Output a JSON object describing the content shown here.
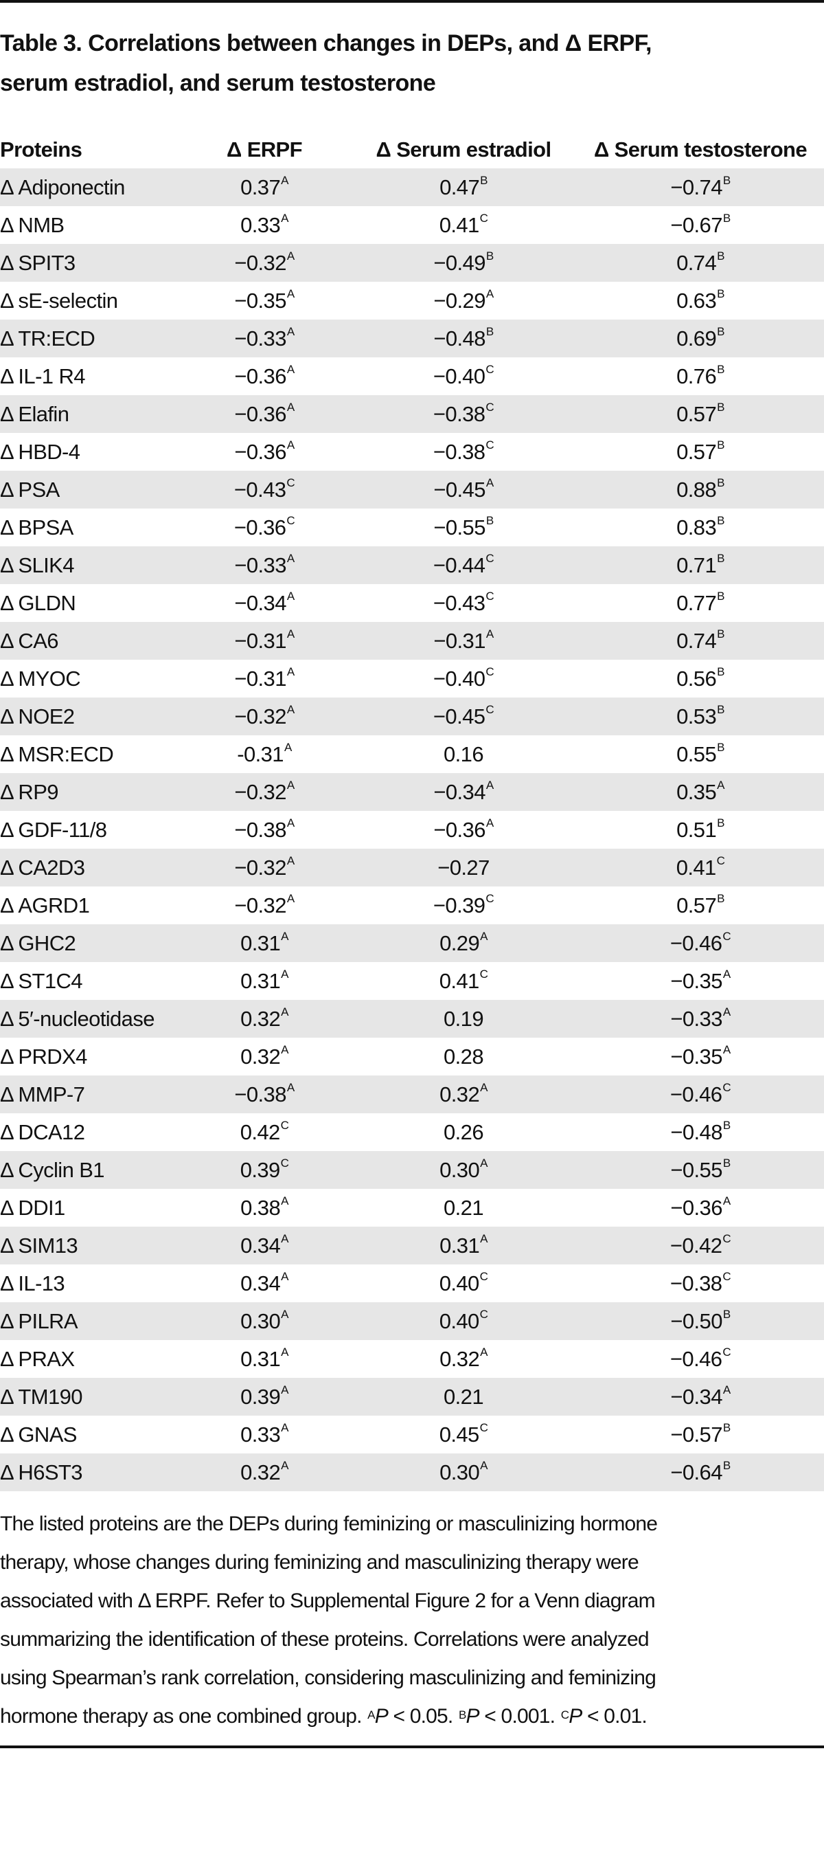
{
  "title": {
    "line1": "Table 3. Correlations between changes in DEPs, and Δ ERPF,",
    "line2": "serum estradiol, and serum testosterone"
  },
  "table": {
    "headers": [
      "Proteins",
      "Δ ERPF",
      "Δ Serum estradiol",
      "Δ Serum testosterone"
    ],
    "rows": [
      [
        "Δ Adiponectin",
        [
          "0.37",
          "A"
        ],
        [
          "0.47",
          "B"
        ],
        [
          "−0.74",
          "B"
        ]
      ],
      [
        "Δ NMB",
        [
          "0.33",
          "A"
        ],
        [
          "0.41",
          "C"
        ],
        [
          "−0.67",
          "B"
        ]
      ],
      [
        "Δ SPIT3",
        [
          "−0.32",
          "A"
        ],
        [
          "−0.49",
          "B"
        ],
        [
          "0.74",
          "B"
        ]
      ],
      [
        "Δ sE-selectin",
        [
          "−0.35",
          "A"
        ],
        [
          "−0.29",
          "A"
        ],
        [
          "0.63",
          "B"
        ]
      ],
      [
        "Δ TR:ECD",
        [
          "−0.33",
          "A"
        ],
        [
          "−0.48",
          "B"
        ],
        [
          "0.69",
          "B"
        ]
      ],
      [
        "Δ IL-1 R4",
        [
          "−0.36",
          "A"
        ],
        [
          "−0.40",
          "C"
        ],
        [
          "0.76",
          "B"
        ]
      ],
      [
        "Δ Elafin",
        [
          "−0.36",
          "A"
        ],
        [
          "−0.38",
          "C"
        ],
        [
          "0.57",
          "B"
        ]
      ],
      [
        "Δ HBD-4",
        [
          "−0.36",
          "A"
        ],
        [
          "−0.38",
          "C"
        ],
        [
          "0.57",
          "B"
        ]
      ],
      [
        "Δ PSA",
        [
          "−0.43",
          "C"
        ],
        [
          "−0.45",
          "A"
        ],
        [
          "0.88",
          "B"
        ]
      ],
      [
        "Δ BPSA",
        [
          "−0.36",
          "C"
        ],
        [
          "−0.55",
          "B"
        ],
        [
          "0.83",
          "B"
        ]
      ],
      [
        "Δ SLIK4",
        [
          "−0.33",
          "A"
        ],
        [
          "−0.44",
          "C"
        ],
        [
          "0.71",
          "B"
        ]
      ],
      [
        "Δ GLDN",
        [
          "−0.34",
          "A"
        ],
        [
          "−0.43",
          "C"
        ],
        [
          "0.77",
          "B"
        ]
      ],
      [
        "Δ CA6",
        [
          "−0.31",
          "A"
        ],
        [
          "−0.31",
          "A"
        ],
        [
          "0.74",
          "B"
        ]
      ],
      [
        "Δ MYOC",
        [
          "−0.31",
          "A"
        ],
        [
          "−0.40",
          "C"
        ],
        [
          "0.56",
          "B"
        ]
      ],
      [
        "Δ NOE2",
        [
          "−0.32",
          "A"
        ],
        [
          "−0.45",
          "C"
        ],
        [
          "0.53",
          "B"
        ]
      ],
      [
        "Δ MSR:ECD",
        [
          "-0.31",
          "A"
        ],
        [
          "0.16",
          ""
        ],
        [
          "0.55",
          "B"
        ]
      ],
      [
        "Δ RP9",
        [
          "−0.32",
          "A"
        ],
        [
          "−0.34",
          "A"
        ],
        [
          "0.35",
          "A"
        ]
      ],
      [
        "Δ GDF-11/8",
        [
          "−0.38",
          "A"
        ],
        [
          "−0.36",
          "A"
        ],
        [
          "0.51",
          "B"
        ]
      ],
      [
        "Δ CA2D3",
        [
          "−0.32",
          "A"
        ],
        [
          "−0.27",
          ""
        ],
        [
          "0.41",
          "C"
        ]
      ],
      [
        "Δ AGRD1",
        [
          "−0.32",
          "A"
        ],
        [
          "−0.39",
          "C"
        ],
        [
          "0.57",
          "B"
        ]
      ],
      [
        "Δ GHC2",
        [
          "0.31",
          "A"
        ],
        [
          "0.29",
          "A"
        ],
        [
          "−0.46",
          "C"
        ]
      ],
      [
        "Δ ST1C4",
        [
          "0.31",
          "A"
        ],
        [
          "0.41",
          "C"
        ],
        [
          "−0.35",
          "A"
        ]
      ],
      [
        "Δ 5′-nucleotidase",
        [
          "0.32",
          "A"
        ],
        [
          "0.19",
          ""
        ],
        [
          "−0.33",
          "A"
        ]
      ],
      [
        "Δ PRDX4",
        [
          "0.32",
          "A"
        ],
        [
          "0.28",
          ""
        ],
        [
          "−0.35",
          "A"
        ]
      ],
      [
        "Δ MMP-7",
        [
          "−0.38",
          "A"
        ],
        [
          "0.32",
          "A"
        ],
        [
          "−0.46",
          "C"
        ]
      ],
      [
        "Δ DCA12",
        [
          "0.42",
          "C"
        ],
        [
          "0.26",
          ""
        ],
        [
          "−0.48",
          "B"
        ]
      ],
      [
        "Δ Cyclin B1",
        [
          "0.39",
          "C"
        ],
        [
          "0.30",
          "A"
        ],
        [
          "−0.55",
          "B"
        ]
      ],
      [
        "Δ DDI1",
        [
          "0.38",
          "A"
        ],
        [
          "0.21",
          ""
        ],
        [
          "−0.36",
          "A"
        ]
      ],
      [
        "Δ SIM13",
        [
          "0.34",
          "A"
        ],
        [
          "0.31",
          "A"
        ],
        [
          "−0.42",
          "C"
        ]
      ],
      [
        "Δ IL-13",
        [
          "0.34",
          "A"
        ],
        [
          "0.40",
          "C"
        ],
        [
          "−0.38",
          "C"
        ]
      ],
      [
        "Δ PILRA",
        [
          "0.30",
          "A"
        ],
        [
          "0.40",
          "C"
        ],
        [
          "−0.50",
          "B"
        ]
      ],
      [
        "Δ PRAX",
        [
          "0.31",
          "A"
        ],
        [
          "0.32",
          "A"
        ],
        [
          "−0.46",
          "C"
        ]
      ],
      [
        "Δ TM190",
        [
          "0.39",
          "A"
        ],
        [
          "0.21",
          ""
        ],
        [
          "−0.34",
          "A"
        ]
      ],
      [
        "Δ GNAS",
        [
          "0.33",
          "A"
        ],
        [
          "0.45",
          "C"
        ],
        [
          "−0.57",
          "B"
        ]
      ],
      [
        "Δ H6ST3",
        [
          "0.32",
          "A"
        ],
        [
          "0.30",
          "A"
        ],
        [
          "−0.64",
          "B"
        ]
      ]
    ]
  },
  "footnote": {
    "lines": [
      "The listed proteins are the DEPs during feminizing or masculinizing hormone",
      "therapy, whose changes during feminizing and masculinizing therapy were",
      "associated with Δ ERPF. Refer to Supplemental Figure 2 for a Venn diagram",
      "summarizing the identification of these proteins. Correlations were analyzed",
      "using Spearman’s rank correlation, considering masculinizing and feminizing"
    ],
    "last_line": "hormone therapy as one combined group.",
    "significance": [
      {
        "mark": "A",
        "p": "P",
        "text": " < 0.05."
      },
      {
        "mark": "B",
        "p": "P",
        "text": " < 0.001."
      },
      {
        "mark": "C",
        "p": "P",
        "text": " < 0.01."
      }
    ]
  },
  "colors": {
    "row_shade": "#e6e6e6",
    "rule": "#111111"
  }
}
